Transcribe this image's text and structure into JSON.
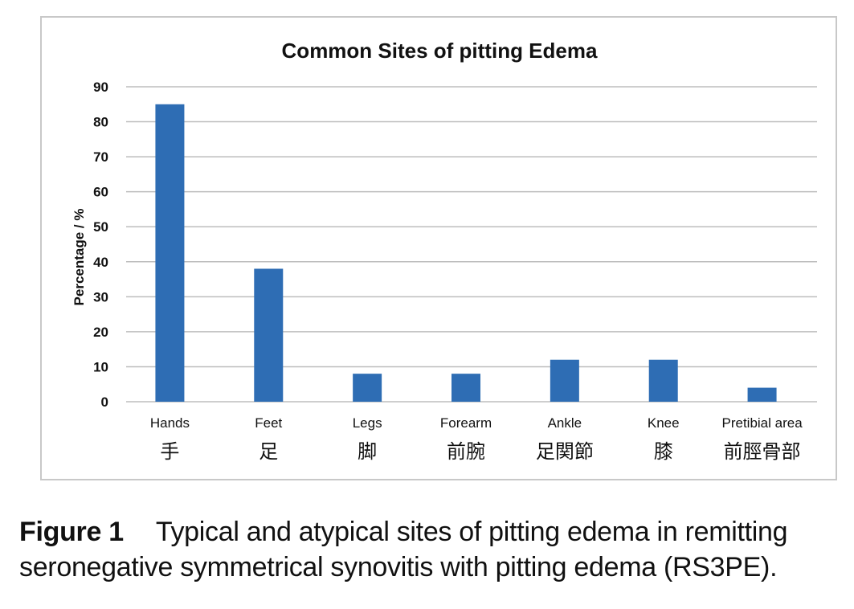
{
  "chart_data": {
    "type": "bar",
    "title": "Common Sites of pitting Edema",
    "ylabel": "Percentage / %",
    "xlabel": "",
    "ylim": [
      0,
      90
    ],
    "yticks": [
      0,
      10,
      20,
      30,
      40,
      50,
      60,
      70,
      80,
      90
    ],
    "grid": true,
    "categories": [
      "Hands",
      "Feet",
      "Legs",
      "Forearm",
      "Ankle",
      "Knee",
      "Pretibial area"
    ],
    "categories_jp": [
      "手",
      "足",
      "脚",
      "前腕",
      "足関節",
      "膝",
      "前脛骨部"
    ],
    "values": [
      85,
      38,
      8,
      8,
      12,
      12,
      4
    ],
    "bar_color": "#2e6db4",
    "grid_color": "#bdbdbd"
  },
  "caption": {
    "label": "Figure 1",
    "text": "Typical and atypical sites of pitting edema in remitting seronegative symmetrical synovitis with pitting edema (RS3PE)."
  }
}
